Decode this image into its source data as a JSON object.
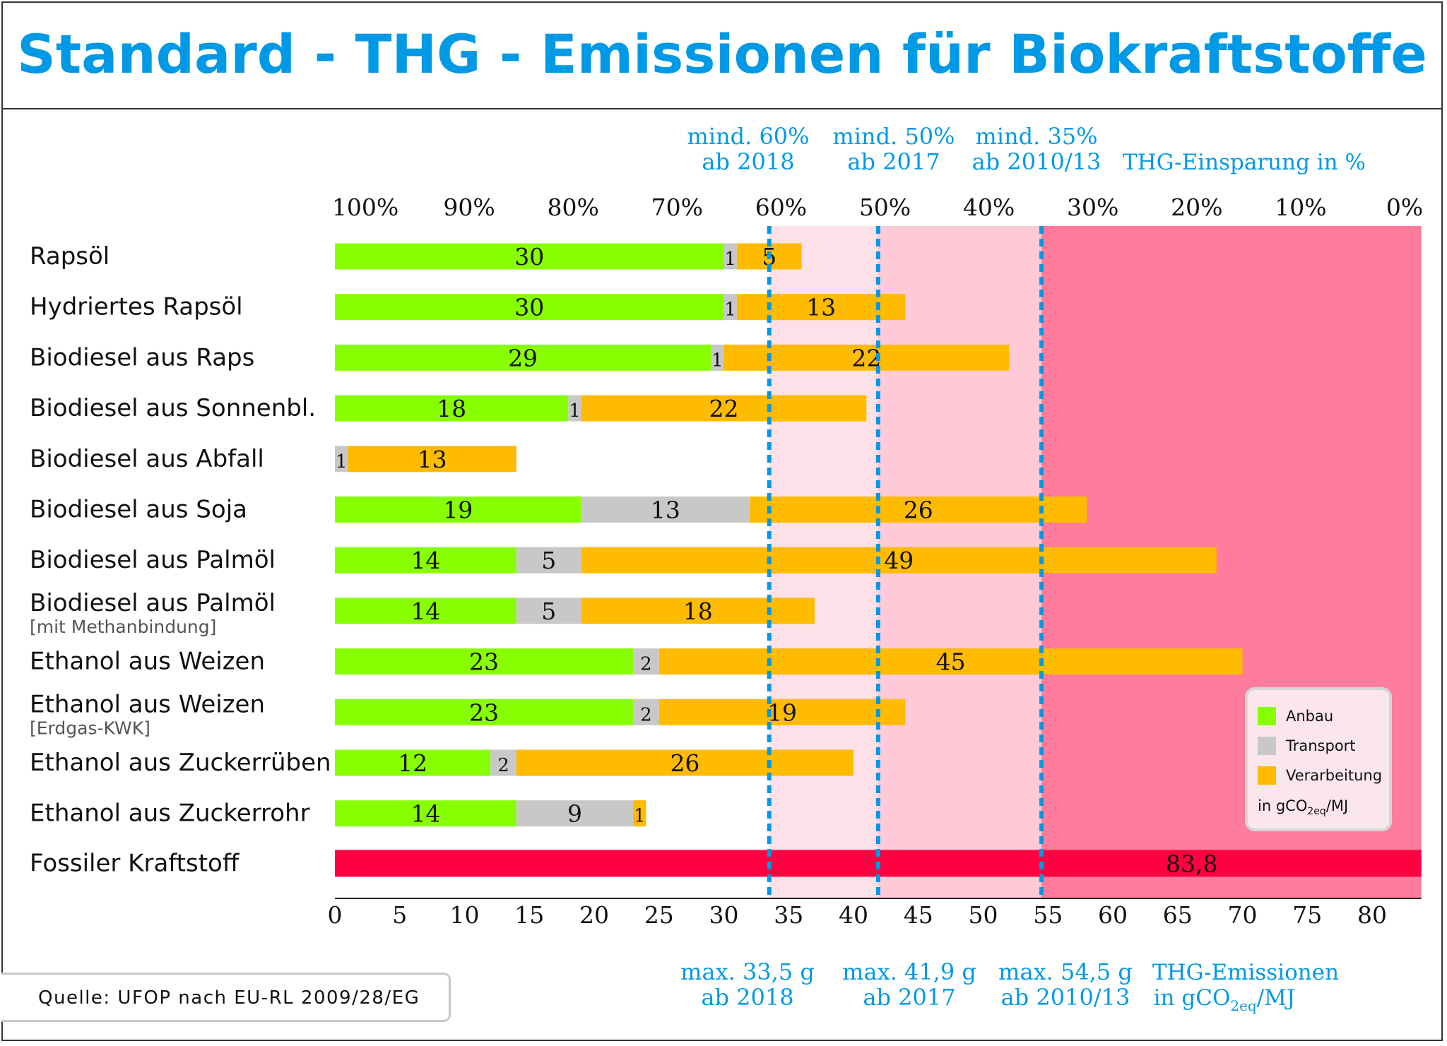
{
  "title": "Standard - THG - Emissionen für Biokraftstoffe",
  "source": "Quelle: UFOP nach EU-RL 2009/28/EG",
  "colors": {
    "title": "#0099e6",
    "anbau": "#88ff00",
    "transport": "#c8c8c8",
    "verarbeitung": "#ffbb00",
    "fossil": "#ff0040",
    "zone_light": "#fde0e8",
    "zone_mid": "#ffcad8",
    "zone_dark": "#ff7c9c",
    "threshold_line": "#0099e6",
    "annotation": "#0099e6"
  },
  "legend": {
    "items": [
      {
        "label": "Anbau",
        "color_key": "anbau"
      },
      {
        "label": "Transport",
        "color_key": "transport"
      },
      {
        "label": "Verarbeitung",
        "color_key": "verarbeitung"
      }
    ],
    "unit": "in gCO",
    "unit_sub": "2eq",
    "unit_tail": "/MJ"
  },
  "chart_data": {
    "type": "bar",
    "orientation": "horizontal",
    "stacked": true,
    "xlabel": "THG-Emissionen in gCO2eq/MJ",
    "xlabel_lines": [
      "THG-Emissionen",
      "in gCO",
      "2eq",
      "/MJ"
    ],
    "xlim": [
      0,
      83.8
    ],
    "x_ticks": [
      0,
      5,
      10,
      15,
      20,
      25,
      30,
      35,
      40,
      45,
      50,
      55,
      60,
      65,
      70,
      75,
      80
    ],
    "top_axis": {
      "label": "THG-Einsparung in %",
      "ticks": [
        "100%",
        "90%",
        "80%",
        "70%",
        "60%",
        "50%",
        "40%",
        "30%",
        "20%",
        "10%",
        "0%"
      ]
    },
    "series_names": [
      "Anbau",
      "Transport",
      "Verarbeitung"
    ],
    "categories": [
      {
        "label": "Rapsöl",
        "sub": "",
        "values": [
          30,
          1,
          5
        ]
      },
      {
        "label": "Hydriertes Rapsöl",
        "sub": "",
        "values": [
          30,
          1,
          13
        ]
      },
      {
        "label": "Biodiesel aus Raps",
        "sub": "",
        "values": [
          29,
          1,
          22
        ]
      },
      {
        "label": "Biodiesel aus Sonnenbl.",
        "sub": "",
        "values": [
          18,
          1,
          22
        ]
      },
      {
        "label": "Biodiesel aus Abfall",
        "sub": "",
        "values": [
          0,
          1,
          13
        ]
      },
      {
        "label": "Biodiesel aus Soja",
        "sub": "",
        "values": [
          19,
          13,
          26
        ]
      },
      {
        "label": "Biodiesel aus Palmöl",
        "sub": "",
        "values": [
          14,
          5,
          49
        ]
      },
      {
        "label": "Biodiesel aus Palmöl",
        "sub": "[mit Methanbindung]",
        "values": [
          14,
          5,
          18
        ]
      },
      {
        "label": "Ethanol aus Weizen",
        "sub": "",
        "values": [
          23,
          2,
          45
        ]
      },
      {
        "label": "Ethanol aus Weizen",
        "sub": "[Erdgas-KWK]",
        "values": [
          23,
          2,
          19
        ]
      },
      {
        "label": "Ethanol aus Zuckerrüben",
        "sub": "",
        "values": [
          12,
          2,
          26
        ]
      },
      {
        "label": "Ethanol aus Zuckerrohr",
        "sub": "",
        "values": [
          14,
          9,
          1
        ]
      }
    ],
    "fossil": {
      "label": "Fossiler Kraftstoff",
      "value": 83.8,
      "value_label": "83,8"
    },
    "thresholds": [
      {
        "value": 33.5,
        "top": [
          "mind. 60%",
          "ab 2018"
        ],
        "bottom": [
          "max. 33,5 g",
          "ab 2018"
        ]
      },
      {
        "value": 41.9,
        "top": [
          "mind. 50%",
          "ab 2017"
        ],
        "bottom": [
          "max. 41,9 g",
          "ab 2017"
        ]
      },
      {
        "value": 54.5,
        "top": [
          "mind. 35%",
          "ab 2010/13"
        ],
        "bottom": [
          "max. 54,5 g",
          "ab 2010/13"
        ]
      }
    ],
    "zones": [
      {
        "from": 33.5,
        "to": 41.9,
        "color_key": "zone_light"
      },
      {
        "from": 41.9,
        "to": 54.5,
        "color_key": "zone_mid"
      },
      {
        "from": 54.5,
        "to": 83.8,
        "color_key": "zone_dark"
      }
    ]
  }
}
